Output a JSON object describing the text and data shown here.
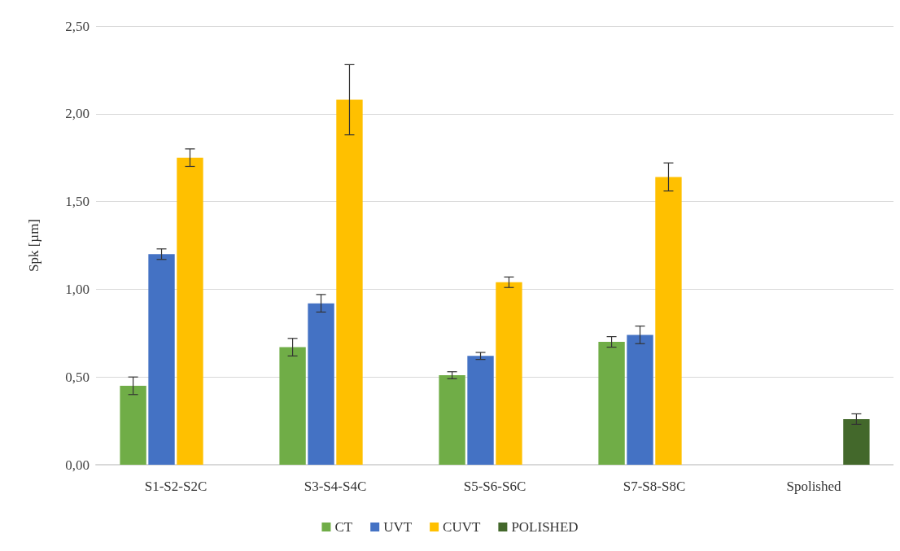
{
  "chart_data": {
    "type": "bar",
    "ylabel": "Spk [µm]",
    "categories": [
      "S1-S2-S2C",
      "S3-S4-S4C",
      "S5-S6-S6C",
      "S7-S8-S8C",
      "Spolished"
    ],
    "series": [
      {
        "name": "CT",
        "color": "#70ad47",
        "values": [
          0.45,
          0.67,
          0.51,
          0.7,
          null
        ],
        "errors": [
          0.05,
          0.05,
          0.02,
          0.03,
          null
        ]
      },
      {
        "name": "UVT",
        "color": "#4472c4",
        "values": [
          1.2,
          0.92,
          0.62,
          0.74,
          null
        ],
        "errors": [
          0.03,
          0.05,
          0.02,
          0.05,
          null
        ]
      },
      {
        "name": "CUVT",
        "color": "#ffc000",
        "values": [
          1.75,
          2.08,
          1.04,
          1.64,
          null
        ],
        "errors": [
          0.05,
          0.2,
          0.03,
          0.08,
          null
        ]
      },
      {
        "name": "POLISHED",
        "color": "#43682b",
        "values": [
          null,
          null,
          null,
          null,
          0.26
        ],
        "errors": [
          null,
          null,
          null,
          null,
          0.03
        ]
      }
    ],
    "ylim": [
      0,
      2.5
    ],
    "yticks": [
      {
        "value": 0,
        "label": "0,00"
      },
      {
        "value": 0.5,
        "label": "0,50"
      },
      {
        "value": 1,
        "label": "1,00"
      },
      {
        "value": 1.5,
        "label": "1,50"
      },
      {
        "value": 2,
        "label": "2,00"
      },
      {
        "value": 2.5,
        "label": "2,50"
      }
    ],
    "grid": "y",
    "legend": "bottom"
  }
}
